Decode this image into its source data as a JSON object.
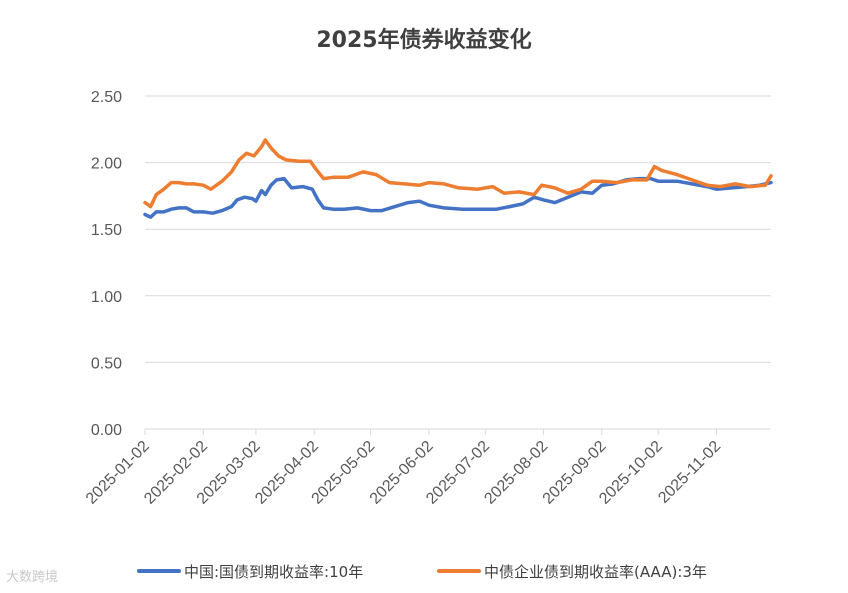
{
  "chart_data": {
    "type": "line",
    "title": "2025年债券收益变化",
    "xlabel": "",
    "ylabel": "",
    "ylim": [
      0,
      2.5
    ],
    "y_ticks": [
      "0.00",
      "0.50",
      "1.00",
      "1.50",
      "2.00",
      "2.50"
    ],
    "x_range": [
      "2025-01-02",
      "2025-12-01"
    ],
    "x_ticks": [
      "2025-01-02",
      "2025-02-02",
      "2025-03-02",
      "2025-04-02",
      "2025-05-02",
      "2025-06-02",
      "2025-07-02",
      "2025-08-02",
      "2025-09-02",
      "2025-10-02",
      "2025-11-02"
    ],
    "grid": "horizontal",
    "legend_position": "bottom",
    "series": [
      {
        "name": "中国:国债到期收益率:10年",
        "color": "#4472C4",
        "points": [
          [
            "2025-01-02",
            1.61
          ],
          [
            "2025-01-05",
            1.59
          ],
          [
            "2025-01-08",
            1.63
          ],
          [
            "2025-01-12",
            1.63
          ],
          [
            "2025-01-16",
            1.65
          ],
          [
            "2025-01-20",
            1.66
          ],
          [
            "2025-01-24",
            1.66
          ],
          [
            "2025-01-28",
            1.63
          ],
          [
            "2025-02-02",
            1.63
          ],
          [
            "2025-02-07",
            1.62
          ],
          [
            "2025-02-12",
            1.64
          ],
          [
            "2025-02-17",
            1.67
          ],
          [
            "2025-02-20",
            1.72
          ],
          [
            "2025-02-24",
            1.74
          ],
          [
            "2025-02-28",
            1.73
          ],
          [
            "2025-03-02",
            1.71
          ],
          [
            "2025-03-05",
            1.79
          ],
          [
            "2025-03-07",
            1.76
          ],
          [
            "2025-03-10",
            1.83
          ],
          [
            "2025-03-13",
            1.87
          ],
          [
            "2025-03-17",
            1.88
          ],
          [
            "2025-03-21",
            1.81
          ],
          [
            "2025-03-27",
            1.82
          ],
          [
            "2025-04-01",
            1.8
          ],
          [
            "2025-04-04",
            1.72
          ],
          [
            "2025-04-07",
            1.66
          ],
          [
            "2025-04-12",
            1.65
          ],
          [
            "2025-04-18",
            1.65
          ],
          [
            "2025-04-25",
            1.66
          ],
          [
            "2025-05-02",
            1.64
          ],
          [
            "2025-05-08",
            1.64
          ],
          [
            "2025-05-15",
            1.67
          ],
          [
            "2025-05-22",
            1.7
          ],
          [
            "2025-05-28",
            1.71
          ],
          [
            "2025-06-02",
            1.68
          ],
          [
            "2025-06-10",
            1.66
          ],
          [
            "2025-06-20",
            1.65
          ],
          [
            "2025-06-30",
            1.65
          ],
          [
            "2025-07-08",
            1.65
          ],
          [
            "2025-07-15",
            1.67
          ],
          [
            "2025-07-22",
            1.69
          ],
          [
            "2025-07-28",
            1.74
          ],
          [
            "2025-08-02",
            1.72
          ],
          [
            "2025-08-08",
            1.7
          ],
          [
            "2025-08-15",
            1.74
          ],
          [
            "2025-08-22",
            1.78
          ],
          [
            "2025-08-28",
            1.77
          ],
          [
            "2025-09-02",
            1.83
          ],
          [
            "2025-09-08",
            1.84
          ],
          [
            "2025-09-15",
            1.87
          ],
          [
            "2025-09-22",
            1.88
          ],
          [
            "2025-09-28",
            1.88
          ],
          [
            "2025-10-02",
            1.86
          ],
          [
            "2025-10-12",
            1.86
          ],
          [
            "2025-10-20",
            1.84
          ],
          [
            "2025-10-28",
            1.82
          ],
          [
            "2025-11-02",
            1.8
          ],
          [
            "2025-11-10",
            1.81
          ],
          [
            "2025-11-18",
            1.82
          ],
          [
            "2025-11-25",
            1.83
          ],
          [
            "2025-12-01",
            1.85
          ]
        ]
      },
      {
        "name": "中债企业债到期收益率(AAA):3年",
        "color": "#ED7D31",
        "points": [
          [
            "2025-01-02",
            1.7
          ],
          [
            "2025-01-05",
            1.67
          ],
          [
            "2025-01-08",
            1.76
          ],
          [
            "2025-01-12",
            1.8
          ],
          [
            "2025-01-16",
            1.85
          ],
          [
            "2025-01-20",
            1.85
          ],
          [
            "2025-01-24",
            1.84
          ],
          [
            "2025-01-28",
            1.84
          ],
          [
            "2025-02-02",
            1.83
          ],
          [
            "2025-02-06",
            1.8
          ],
          [
            "2025-02-12",
            1.86
          ],
          [
            "2025-02-17",
            1.93
          ],
          [
            "2025-02-21",
            2.02
          ],
          [
            "2025-02-25",
            2.07
          ],
          [
            "2025-03-01",
            2.05
          ],
          [
            "2025-03-05",
            2.12
          ],
          [
            "2025-03-07",
            2.17
          ],
          [
            "2025-03-10",
            2.11
          ],
          [
            "2025-03-14",
            2.05
          ],
          [
            "2025-03-18",
            2.02
          ],
          [
            "2025-03-25",
            2.01
          ],
          [
            "2025-03-31",
            2.01
          ],
          [
            "2025-04-03",
            1.95
          ],
          [
            "2025-04-07",
            1.88
          ],
          [
            "2025-04-12",
            1.89
          ],
          [
            "2025-04-20",
            1.89
          ],
          [
            "2025-04-28",
            1.93
          ],
          [
            "2025-05-05",
            1.91
          ],
          [
            "2025-05-12",
            1.85
          ],
          [
            "2025-05-20",
            1.84
          ],
          [
            "2025-05-28",
            1.83
          ],
          [
            "2025-06-02",
            1.85
          ],
          [
            "2025-06-10",
            1.84
          ],
          [
            "2025-06-18",
            1.81
          ],
          [
            "2025-06-28",
            1.8
          ],
          [
            "2025-07-06",
            1.82
          ],
          [
            "2025-07-12",
            1.77
          ],
          [
            "2025-07-20",
            1.78
          ],
          [
            "2025-07-28",
            1.76
          ],
          [
            "2025-08-01",
            1.83
          ],
          [
            "2025-08-08",
            1.81
          ],
          [
            "2025-08-15",
            1.77
          ],
          [
            "2025-08-22",
            1.8
          ],
          [
            "2025-08-28",
            1.86
          ],
          [
            "2025-09-02",
            1.86
          ],
          [
            "2025-09-10",
            1.85
          ],
          [
            "2025-09-18",
            1.87
          ],
          [
            "2025-09-26",
            1.87
          ],
          [
            "2025-09-30",
            1.97
          ],
          [
            "2025-10-04",
            1.94
          ],
          [
            "2025-10-12",
            1.91
          ],
          [
            "2025-10-20",
            1.87
          ],
          [
            "2025-10-28",
            1.83
          ],
          [
            "2025-11-04",
            1.82
          ],
          [
            "2025-11-12",
            1.84
          ],
          [
            "2025-11-20",
            1.82
          ],
          [
            "2025-11-28",
            1.83
          ],
          [
            "2025-12-01",
            1.9
          ]
        ]
      }
    ]
  },
  "watermark": "大数跨境"
}
